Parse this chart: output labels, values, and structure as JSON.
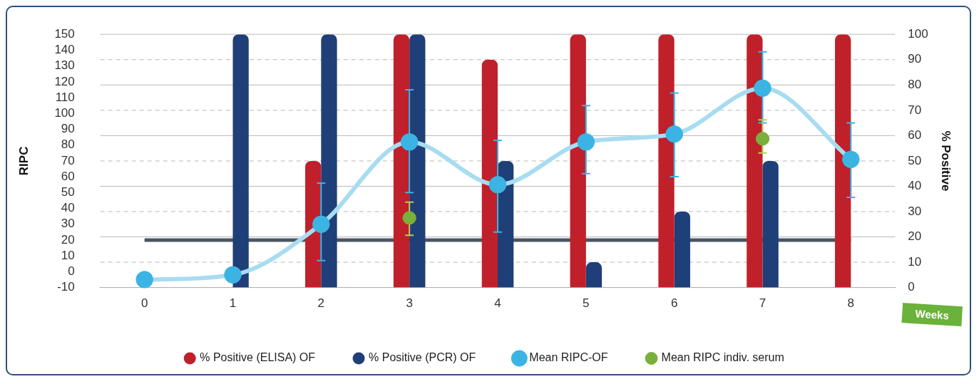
{
  "chart_data": {
    "type": "bar",
    "ylabel": "RIPC",
    "y2label": "% Positive",
    "xlabel": "Weeks",
    "categories": [
      "0",
      "1",
      "2",
      "3",
      "4",
      "5",
      "6",
      "7",
      "8"
    ],
    "series": [
      {
        "name": "% Positive (ELISA) OF",
        "axis": "y2",
        "color": "#c0202a",
        "values": [
          null,
          null,
          50,
          100,
          90,
          100,
          100,
          100,
          100
        ]
      },
      {
        "name": "% Positive (PCR) OF",
        "axis": "y2",
        "color": "#1f3f78",
        "values": [
          null,
          100,
          100,
          100,
          50,
          10,
          30,
          50,
          null
        ]
      },
      {
        "name": "Mean RIPC-OF",
        "type": "line",
        "axis": "y",
        "color": "#3bb4e4",
        "marker": "circle",
        "values": [
          -5,
          -2,
          30,
          82,
          55,
          82,
          87,
          116,
          71
        ],
        "errors": [
          null,
          null,
          [
            7,
            56
          ],
          [
            50,
            115
          ],
          [
            25,
            83
          ],
          [
            62,
            105
          ],
          [
            60,
            113
          ],
          [
            94,
            139
          ],
          [
            47,
            94
          ]
        ]
      },
      {
        "name": "Mean RIPC indiv. serum",
        "type": "scatter",
        "axis": "y",
        "color": "#7ab03a",
        "marker": "circle",
        "values": [
          null,
          null,
          null,
          34,
          null,
          null,
          null,
          84,
          null
        ],
        "errors": [
          null,
          null,
          null,
          [
            23,
            44
          ],
          null,
          null,
          null,
          [
            75,
            96
          ],
          null
        ]
      }
    ],
    "ylim": [
      -10,
      150
    ],
    "yticks": [
      -10,
      0,
      10,
      20,
      30,
      40,
      50,
      60,
      70,
      80,
      90,
      100,
      110,
      120,
      130,
      140,
      150
    ],
    "y2lim": [
      0,
      100
    ],
    "y2ticks": [
      0,
      10,
      20,
      30,
      40,
      50,
      60,
      70,
      80,
      90,
      100
    ],
    "ref_lines": [
      {
        "axis": "y",
        "value": 20,
        "color": "#4a5560"
      }
    ],
    "grid": true,
    "legend": "bottom"
  }
}
